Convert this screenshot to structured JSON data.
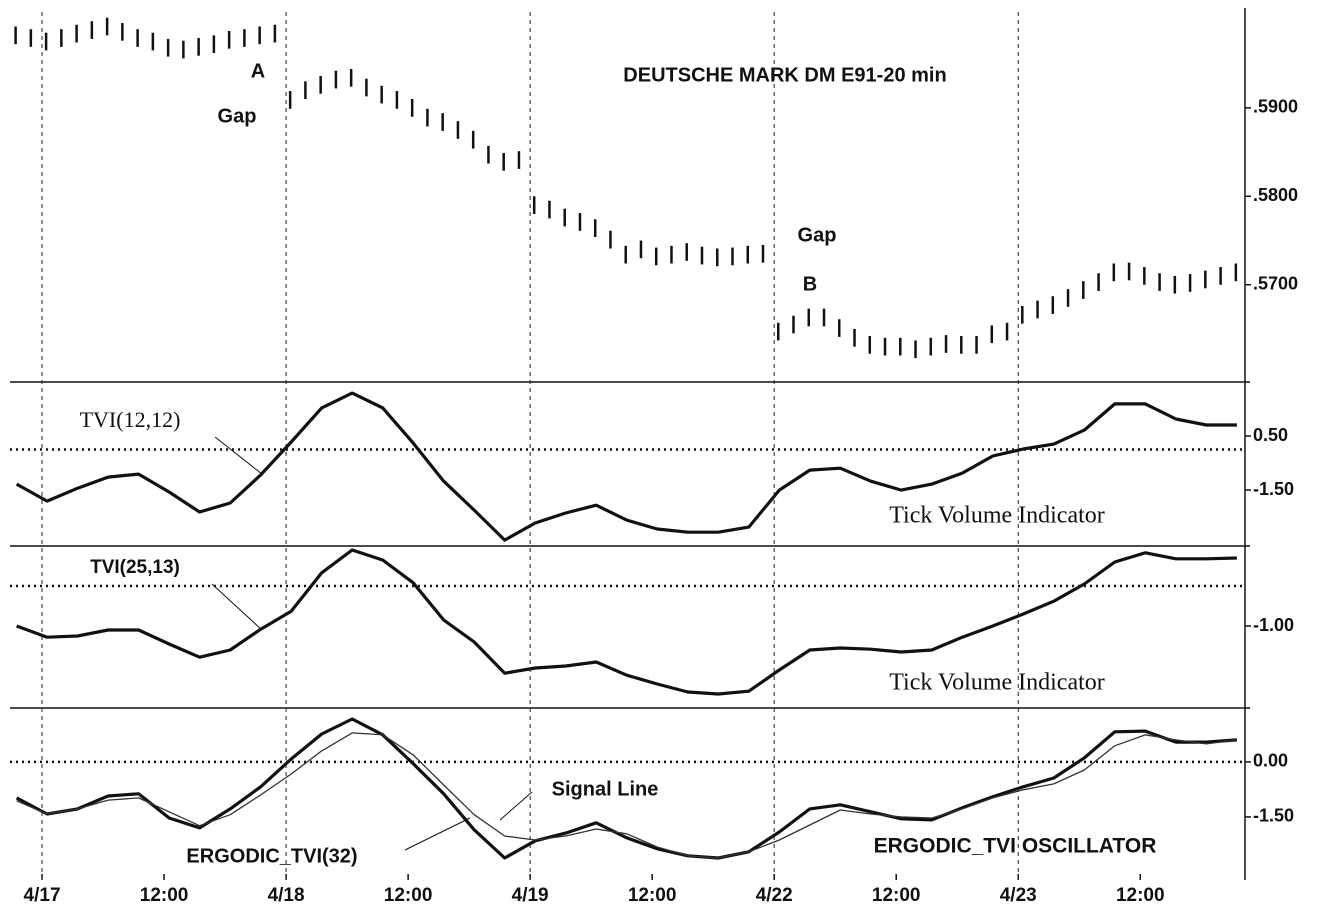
{
  "chart_data": [
    {
      "type": "highlow",
      "title": "DEUTSCHE MARK DM E91-20 min",
      "annotations": [
        "A",
        "Gap",
        "Gap",
        "B"
      ],
      "color": "#111111",
      "x": [
        -2.6,
        -1.1,
        0.4,
        1.9,
        3.4,
        4.9,
        6.4,
        7.9,
        9.4,
        10.9,
        12.4,
        13.9,
        15.4,
        16.9,
        18.4,
        19.9,
        21.4,
        22.9,
        24.4,
        25.9,
        27.4,
        28.9,
        30.4,
        31.9,
        33.4,
        34.9,
        36.4,
        37.9,
        39.4,
        40.9,
        42.4,
        43.9,
        45.4,
        46.9,
        48.4,
        49.9,
        51.4,
        52.9,
        54.4,
        55.9,
        57.4,
        58.9,
        60.4,
        61.9,
        63.4,
        64.9,
        66.4,
        67.9,
        69.4,
        70.9,
        72.4,
        73.9,
        75.4,
        76.9,
        78.4,
        79.9,
        81.4,
        82.9,
        84.4,
        85.9,
        87.4,
        88.9,
        90.4,
        91.9,
        93.4,
        94.9,
        96.4,
        97.9,
        99.4,
        100.9,
        102.4,
        103.9,
        105.4,
        106.9,
        108.4,
        109.9,
        111.4,
        112.9,
        114.4,
        115.9,
        117.4
      ],
      "high": [
        0.5992,
        0.5989,
        0.5985,
        0.5989,
        0.5994,
        0.5998,
        0.6002,
        0.5996,
        0.5989,
        0.5985,
        0.5978,
        0.5976,
        0.5979,
        0.5982,
        0.5987,
        0.5989,
        0.5992,
        0.5994,
        0.5919,
        0.593,
        0.5936,
        0.5942,
        0.5944,
        0.5933,
        0.5925,
        0.5919,
        0.591,
        0.5899,
        0.5894,
        0.5885,
        0.5874,
        0.5857,
        0.5849,
        0.5851,
        0.58,
        0.5795,
        0.5786,
        0.5781,
        0.5774,
        0.5761,
        0.5744,
        0.575,
        0.5742,
        0.5744,
        0.5747,
        0.5743,
        0.5741,
        0.5742,
        0.5744,
        0.5745,
        0.5657,
        0.5665,
        0.5673,
        0.5673,
        0.5661,
        0.565,
        0.5642,
        0.564,
        0.564,
        0.5637,
        0.564,
        0.5643,
        0.5642,
        0.5642,
        0.5654,
        0.5657,
        0.5676,
        0.5682,
        0.5687,
        0.5695,
        0.5704,
        0.5713,
        0.5724,
        0.5725,
        0.572,
        0.5713,
        0.571,
        0.5712,
        0.5716,
        0.572,
        0.5724
      ],
      "low": [
        0.5972,
        0.5969,
        0.5965,
        0.5969,
        0.5974,
        0.5978,
        0.5982,
        0.5976,
        0.5969,
        0.5965,
        0.5958,
        0.5956,
        0.5959,
        0.5962,
        0.5967,
        0.5969,
        0.5972,
        0.5974,
        0.5899,
        0.591,
        0.5916,
        0.5922,
        0.5924,
        0.5913,
        0.5905,
        0.5899,
        0.589,
        0.5879,
        0.5874,
        0.5865,
        0.5854,
        0.5837,
        0.5829,
        0.5831,
        0.578,
        0.5775,
        0.5766,
        0.5761,
        0.5754,
        0.5741,
        0.5724,
        0.573,
        0.5722,
        0.5724,
        0.5727,
        0.5723,
        0.5721,
        0.5722,
        0.5724,
        0.5725,
        0.5637,
        0.5645,
        0.5653,
        0.5653,
        0.5641,
        0.563,
        0.5622,
        0.562,
        0.562,
        0.5617,
        0.562,
        0.5623,
        0.5622,
        0.5622,
        0.5634,
        0.5637,
        0.5656,
        0.5662,
        0.5667,
        0.5675,
        0.5684,
        0.5693,
        0.5704,
        0.5705,
        0.57,
        0.5693,
        0.569,
        0.5692,
        0.5696,
        0.57,
        0.5704
      ],
      "xlim": [
        -3.15,
        118.3
      ],
      "ylim": [
        0.559,
        0.6022
      ],
      "yticks": [
        {
          "value": 0.59,
          "label": ".5900"
        },
        {
          "value": 0.58,
          "label": ".5800"
        },
        {
          "value": 0.57,
          "label": ".5700"
        }
      ]
    },
    {
      "type": "line",
      "title": "Tick Volume Indicator",
      "x": [
        -2.5,
        0.5,
        3.5,
        6.5,
        9.5,
        12.5,
        15.5,
        18.5,
        21.5,
        24.5,
        27.5,
        30.5,
        33.5,
        36.5,
        39.5,
        42.5,
        45.5,
        48.5,
        51.5,
        54.5,
        57.5,
        60.5,
        63.5,
        66.5,
        69.5,
        72.5,
        75.5,
        78.5,
        81.5,
        84.5,
        87.5,
        90.5,
        93.5,
        96.5,
        99.5,
        102.5,
        105.5,
        108.5,
        111.5,
        114.5,
        117.5
      ],
      "series": [
        {
          "name": "TVI(12,12)",
          "color": "#111111",
          "values": [
            -1.28,
            -1.91,
            -1.43,
            -1.02,
            -0.91,
            -1.57,
            -2.31,
            -1.98,
            -0.94,
            0.28,
            1.54,
            2.09,
            1.54,
            0.24,
            -1.17,
            -2.24,
            -3.35,
            -2.72,
            -2.35,
            -2.06,
            -2.61,
            -2.94,
            -3.06,
            -3.06,
            -2.87,
            -1.5,
            -0.76,
            -0.69,
            -1.17,
            -1.5,
            -1.28,
            -0.87,
            -0.24,
            0.02,
            0.2,
            0.72,
            1.69,
            1.69,
            1.13,
            0.91,
            0.91
          ]
        }
      ],
      "xlim": [
        -3.15,
        118.3
      ],
      "ylim": [
        -3.57,
        2.5
      ],
      "yticks": [
        {
          "value": 0.5,
          "label": "0.50"
        },
        {
          "value": -1.5,
          "label": "-1.50"
        }
      ],
      "reference_lines": [
        0
      ]
    },
    {
      "type": "line",
      "title": "Tick Volume Indicator",
      "x": [
        -2.5,
        0.5,
        3.5,
        6.5,
        9.5,
        12.5,
        15.5,
        18.5,
        21.5,
        24.5,
        27.5,
        30.5,
        33.5,
        36.5,
        39.5,
        42.5,
        45.5,
        48.5,
        51.5,
        54.5,
        57.5,
        60.5,
        63.5,
        66.5,
        69.5,
        72.5,
        75.5,
        78.5,
        81.5,
        84.5,
        87.5,
        90.5,
        93.5,
        96.5,
        99.5,
        102.5,
        105.5,
        108.5,
        111.5,
        114.5,
        117.5
      ],
      "series": [
        {
          "name": "TVI(25,13)",
          "color": "#111111",
          "values": [
            -1.0,
            -1.28,
            -1.25,
            -1.1,
            -1.1,
            -1.45,
            -1.78,
            -1.6,
            -1.08,
            -0.63,
            0.33,
            0.9,
            0.65,
            0.08,
            -0.85,
            -1.4,
            -2.18,
            -2.05,
            -2.0,
            -1.9,
            -2.23,
            -2.45,
            -2.65,
            -2.7,
            -2.63,
            -2.1,
            -1.6,
            -1.55,
            -1.58,
            -1.65,
            -1.6,
            -1.28,
            -1.0,
            -0.7,
            -0.38,
            0.05,
            0.6,
            0.83,
            0.68,
            0.68,
            0.7
          ]
        }
      ],
      "xlim": [
        -3.15,
        118.3
      ],
      "ylim": [
        -3.05,
        1.0
      ],
      "yticks": [
        {
          "value": -1,
          "label": "-1.00"
        }
      ],
      "reference_lines": [
        0
      ]
    },
    {
      "type": "line",
      "title": "ERGODIC_TVI OSCILLATOR",
      "x": [
        -2.5,
        0.5,
        3.5,
        6.5,
        9.5,
        12.5,
        15.5,
        18.5,
        21.5,
        24.5,
        27.5,
        30.5,
        33.5,
        36.5,
        39.5,
        42.5,
        45.5,
        48.5,
        51.5,
        54.5,
        57.5,
        60.5,
        63.5,
        66.5,
        69.5,
        72.5,
        75.5,
        78.5,
        81.5,
        84.5,
        87.5,
        90.5,
        93.5,
        96.5,
        99.5,
        102.5,
        105.5,
        108.5,
        111.5,
        114.5,
        117.5
      ],
      "series": [
        {
          "name": "ERGODIC_TVI(32)",
          "color": "#111111",
          "values": [
            -0.98,
            -1.42,
            -1.28,
            -0.93,
            -0.87,
            -1.53,
            -1.8,
            -1.28,
            -0.68,
            0.08,
            0.76,
            1.17,
            0.74,
            -0.05,
            -0.87,
            -1.85,
            -2.62,
            -2.15,
            -1.94,
            -1.66,
            -2.07,
            -2.37,
            -2.56,
            -2.62,
            -2.45,
            -1.91,
            -1.28,
            -1.17,
            -1.36,
            -1.55,
            -1.58,
            -1.25,
            -0.95,
            -0.68,
            -0.44,
            0.11,
            0.82,
            0.84,
            0.54,
            0.54,
            0.6
          ]
        },
        {
          "name": "Signal Line",
          "color": "#333333",
          "values": [
            -1.06,
            -1.42,
            -1.28,
            -1.04,
            -0.98,
            -1.36,
            -1.74,
            -1.44,
            -0.9,
            -0.33,
            0.3,
            0.79,
            0.74,
            0.19,
            -0.63,
            -1.44,
            -2.02,
            -2.13,
            -2.02,
            -1.83,
            -1.96,
            -2.32,
            -2.56,
            -2.62,
            -2.45,
            -2.13,
            -1.72,
            -1.31,
            -1.42,
            -1.5,
            -1.53,
            -1.28,
            -0.98,
            -0.76,
            -0.6,
            -0.22,
            0.44,
            0.74,
            0.6,
            0.49,
            0.6
          ]
        }
      ],
      "xlim": [
        -3.15,
        118.3
      ],
      "ylim": [
        -3.22,
        1.47
      ],
      "yticks": [
        {
          "value": 0,
          "label": "0.00"
        },
        {
          "value": -1.5,
          "label": "-1.50"
        }
      ],
      "reference_lines": [
        0
      ],
      "xticks": [
        {
          "value": 0,
          "label": "4/17"
        },
        {
          "value": 12,
          "label": "12:00"
        },
        {
          "value": 24,
          "label": "4/18"
        },
        {
          "value": 36,
          "label": "12:00"
        },
        {
          "value": 48,
          "label": "4/19"
        },
        {
          "value": 60,
          "label": "12:00"
        },
        {
          "value": 72,
          "label": "4/22"
        },
        {
          "value": 84,
          "label": "12:00"
        },
        {
          "value": 96,
          "label": "4/23"
        },
        {
          "value": 108,
          "label": "12:00"
        }
      ]
    }
  ]
}
